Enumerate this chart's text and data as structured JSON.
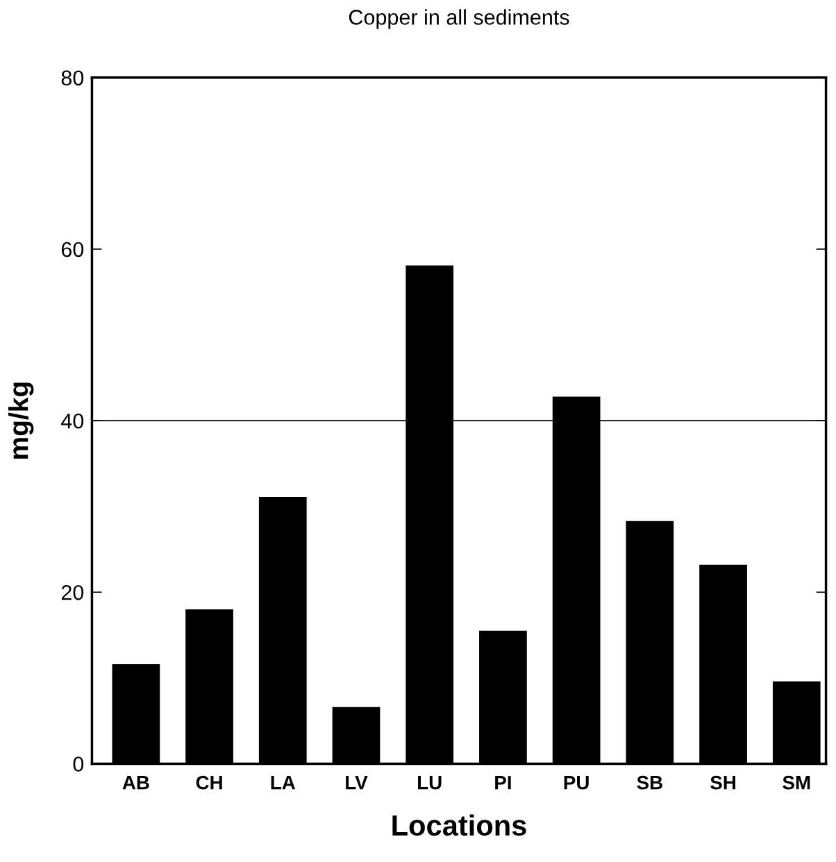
{
  "chart_data": {
    "type": "bar",
    "title": "Copper in all sediments",
    "xlabel": "Locations",
    "ylabel": "mg/kg",
    "categories": [
      "AB",
      "CH",
      "LA",
      "LV",
      "LU",
      "PI",
      "PU",
      "SB",
      "SH",
      "SM"
    ],
    "values": [
      11.6,
      18.0,
      31.1,
      6.6,
      58.1,
      15.5,
      42.8,
      28.3,
      23.2,
      9.6
    ],
    "color": "#000000",
    "ylim": [
      0,
      80
    ],
    "yticks": [
      0,
      20,
      40,
      60,
      80
    ],
    "ref_lines": [
      {
        "axis": "y",
        "value": 40,
        "label": null,
        "color": "#000000"
      }
    ],
    "grid": false
  }
}
